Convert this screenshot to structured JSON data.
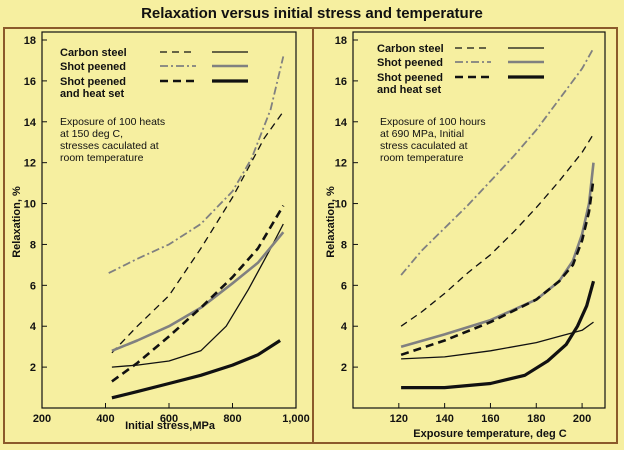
{
  "title": "Relaxation versus initial stress and temperature",
  "colors": {
    "background": "#f6efa0",
    "frame": "#8b5a2b",
    "ink": "#111111",
    "gray": "#808080"
  },
  "chart_data": [
    {
      "type": "line",
      "xlabel": "Initial stress,MPa",
      "ylabel": "Relaxation, %",
      "xlim": [
        200,
        1000
      ],
      "ylim": [
        0,
        18
      ],
      "xticks": [
        200,
        400,
        600,
        800,
        1000
      ],
      "xtick_labels": [
        "200",
        "400",
        "600",
        "800",
        "1,000"
      ],
      "yticks": [
        2,
        4,
        6,
        8,
        10,
        12,
        14,
        16,
        18
      ],
      "grid": false,
      "legend": {
        "position": "top-left",
        "entries": [
          {
            "label": "Carbon steel",
            "styles": [
              "dashed",
              "solid"
            ]
          },
          {
            "label": "Shot peened",
            "styles": [
              "dashdot-gray",
              "solid-gray"
            ]
          },
          {
            "label": "Shot peened and heat set",
            "styles": [
              "dashed-thick",
              "solid-thick"
            ]
          }
        ]
      },
      "annotation": "Exposure of 100 heats at 150 deg C, stresses caculated at room temperature",
      "series": [
        {
          "group": "Carbon steel",
          "style": "dashed",
          "x": [
            420,
            500,
            600,
            700,
            800,
            900,
            960
          ],
          "y": [
            2.7,
            4.0,
            5.5,
            7.8,
            10.3,
            13.2,
            14.5
          ]
        },
        {
          "group": "Carbon steel",
          "style": "solid",
          "x": [
            420,
            500,
            600,
            700,
            780,
            850,
            920,
            960
          ],
          "y": [
            2.0,
            2.1,
            2.3,
            2.8,
            4.0,
            5.8,
            7.8,
            9.0
          ]
        },
        {
          "group": "Shot peened",
          "style": "dashdot-gray",
          "x": [
            410,
            500,
            600,
            700,
            800,
            860,
            920,
            960
          ],
          "y": [
            6.6,
            7.3,
            8.0,
            9.0,
            10.6,
            12.2,
            14.6,
            17.2
          ]
        },
        {
          "group": "Shot peened",
          "style": "solid-gray",
          "x": [
            420,
            500,
            600,
            700,
            800,
            880,
            960
          ],
          "y": [
            2.8,
            3.3,
            4.0,
            4.9,
            6.1,
            7.1,
            8.6
          ]
        },
        {
          "group": "Shot peened and heat set",
          "style": "dashed-thick",
          "x": [
            420,
            500,
            600,
            700,
            800,
            880,
            960
          ],
          "y": [
            1.3,
            2.2,
            3.5,
            4.9,
            6.4,
            7.8,
            9.9
          ]
        },
        {
          "group": "Shot peened and heat set",
          "style": "solid-thick",
          "x": [
            420,
            500,
            600,
            700,
            800,
            880,
            950
          ],
          "y": [
            0.5,
            0.8,
            1.2,
            1.6,
            2.1,
            2.6,
            3.3
          ]
        }
      ]
    },
    {
      "type": "line",
      "xlabel": "Exposure temperature, deg C",
      "ylabel": "Relaxation, %",
      "xlim": [
        100,
        210
      ],
      "ylim": [
        0,
        18
      ],
      "xticks": [
        120,
        140,
        160,
        180,
        200
      ],
      "xtick_labels": [
        "120",
        "140",
        "160",
        "180",
        "200"
      ],
      "yticks": [
        2,
        4,
        6,
        8,
        10,
        12,
        14,
        16,
        18
      ],
      "grid": false,
      "legend": {
        "position": "top-left",
        "entries": [
          {
            "label": "Carbon steel",
            "styles": [
              "dashed",
              "solid"
            ]
          },
          {
            "label": "Shot peened",
            "styles": [
              "dashdot-gray",
              "solid-gray"
            ]
          },
          {
            "label": "Shot peened and heat set",
            "styles": [
              "dashed-thick",
              "solid-thick"
            ]
          }
        ]
      },
      "annotation": "Exposure of 100 hours at 690 MPa, Initial stress caculated at room temperature",
      "series": [
        {
          "group": "Carbon steel",
          "style": "dashed",
          "x": [
            121,
            130,
            140,
            150,
            160,
            170,
            180,
            190,
            200,
            205
          ],
          "y": [
            4.0,
            4.7,
            5.6,
            6.6,
            7.5,
            8.6,
            9.8,
            11.1,
            12.5,
            13.4
          ]
        },
        {
          "group": "Carbon steel",
          "style": "solid",
          "x": [
            121,
            140,
            160,
            180,
            190,
            200,
            205
          ],
          "y": [
            2.4,
            2.5,
            2.8,
            3.2,
            3.5,
            3.8,
            4.2
          ]
        },
        {
          "group": "Shot peened",
          "style": "dashdot-gray",
          "x": [
            121,
            130,
            140,
            150,
            160,
            170,
            180,
            190,
            200,
            205
          ],
          "y": [
            6.5,
            7.7,
            8.8,
            9.9,
            11.1,
            12.3,
            13.6,
            15.1,
            16.6,
            17.6
          ]
        },
        {
          "group": "Shot peened",
          "style": "solid-gray",
          "x": [
            121,
            140,
            160,
            180,
            190,
            196,
            200,
            203,
            205
          ],
          "y": [
            3.0,
            3.6,
            4.3,
            5.3,
            6.2,
            7.2,
            8.5,
            10.0,
            12.0
          ]
        },
        {
          "group": "Shot peened and heat set",
          "style": "dashed-thick",
          "x": [
            121,
            140,
            160,
            180,
            190,
            196,
            200,
            203,
            205
          ],
          "y": [
            2.6,
            3.3,
            4.2,
            5.3,
            6.2,
            7.0,
            8.2,
            9.6,
            11.2
          ]
        },
        {
          "group": "Shot peened and heat set",
          "style": "solid-thick",
          "x": [
            121,
            140,
            160,
            175,
            185,
            193,
            198,
            202,
            205
          ],
          "y": [
            1.0,
            1.0,
            1.2,
            1.6,
            2.3,
            3.1,
            4.0,
            5.0,
            6.2
          ]
        }
      ]
    }
  ]
}
